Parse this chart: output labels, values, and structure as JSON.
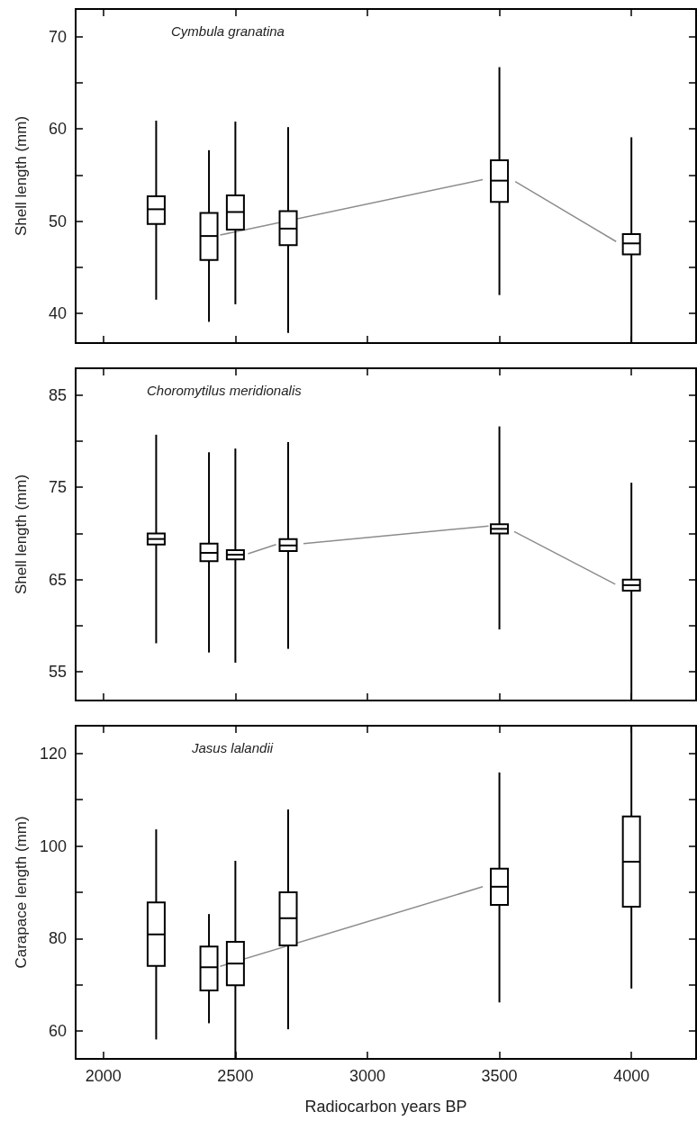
{
  "chart_data": [
    {
      "type": "box",
      "title": "Cymbula granatina",
      "ylabel": "Shell length (mm)",
      "xlim": [
        1895,
        4245
      ],
      "xticks": [
        2000,
        2500,
        3000,
        3500,
        4000
      ],
      "ylim": [
        36.8,
        73
      ],
      "yticks": [
        40,
        {
          "value": 45,
          "label": null
        },
        50,
        {
          "value": 55,
          "label": null
        },
        60,
        {
          "value": 65,
          "label": null
        },
        70
      ],
      "tick_labels": "y",
      "grid": false,
      "series": [
        {
          "color": "#000000",
          "x": [
            2200,
            2400,
            2500,
            2700,
            3500,
            4000
          ],
          "boxes": [
            {
              "low": 41.5,
              "q1": 49.7,
              "median": 51.3,
              "q3": 52.7,
              "high": 60.9
            },
            {
              "low": 39.1,
              "q1": 45.8,
              "median": 48.4,
              "q3": 50.9,
              "high": 57.7
            },
            {
              "low": 41.0,
              "q1": 49.1,
              "median": 51.0,
              "q3": 52.8,
              "high": 60.8
            },
            {
              "low": 37.9,
              "q1": 47.4,
              "median": 49.2,
              "q3": 51.1,
              "high": 60.2
            },
            {
              "low": 42.0,
              "q1": 52.1,
              "median": 54.4,
              "q3": 56.6,
              "high": 66.7
            },
            {
              "low": 36.8,
              "q1": 46.4,
              "median": 47.6,
              "q3": 48.6,
              "high": 59.1
            }
          ]
        },
        {
          "type": "line",
          "color": "#8c8c8c",
          "x": [
            2442,
            3437
          ],
          "values": [
            48.5,
            54.5
          ]
        },
        {
          "type": "line",
          "color": "#8c8c8c",
          "x": [
            3560,
            3942
          ],
          "values": [
            54.3,
            47.8
          ]
        }
      ]
    },
    {
      "type": "box",
      "title": "Choromytilus meridionalis",
      "ylabel": "Shell length (mm)",
      "xlim": [
        1895,
        4245
      ],
      "xticks": [
        2000,
        2500,
        3000,
        3500,
        4000
      ],
      "ylim": [
        51.9,
        87.9
      ],
      "yticks": [
        55,
        {
          "value": 60,
          "label": null
        },
        65,
        {
          "value": 70,
          "label": null
        },
        75,
        {
          "value": 80,
          "label": null
        },
        85
      ],
      "tick_labels": "y",
      "grid": false,
      "series": [
        {
          "color": "#000000",
          "x": [
            2200,
            2400,
            2500,
            2700,
            3500,
            4000
          ],
          "boxes": [
            {
              "low": 58.1,
              "q1": 68.8,
              "median": 69.4,
              "q3": 70.0,
              "high": 80.7
            },
            {
              "low": 57.1,
              "q1": 67.0,
              "median": 67.9,
              "q3": 68.9,
              "high": 78.8
            },
            {
              "low": 56.0,
              "q1": 67.2,
              "median": 67.7,
              "q3": 68.2,
              "high": 79.2
            },
            {
              "low": 57.5,
              "q1": 68.1,
              "median": 68.7,
              "q3": 69.4,
              "high": 79.9
            },
            {
              "low": 59.6,
              "q1": 70.0,
              "median": 70.5,
              "q3": 71.0,
              "high": 81.6
            },
            {
              "low": 51.9,
              "q1": 63.8,
              "median": 64.4,
              "q3": 65.0,
              "high": 75.5
            }
          ]
        },
        {
          "type": "line",
          "color": "#8c8c8c",
          "x": [
            2548,
            2654
          ],
          "values": [
            67.8,
            68.8
          ]
        },
        {
          "type": "line",
          "color": "#8c8c8c",
          "x": [
            2758,
            3459
          ],
          "values": [
            68.9,
            70.8
          ]
        },
        {
          "type": "line",
          "color": "#8c8c8c",
          "x": [
            3556,
            3939
          ],
          "values": [
            70.2,
            64.5
          ]
        }
      ]
    },
    {
      "type": "box",
      "title": "Jasus lalandii",
      "ylabel": "Carapace length (mm)",
      "xlabel": "Radiocarbon years BP",
      "xlim": [
        1895,
        4245
      ],
      "xticks": [
        2000,
        2500,
        3000,
        3500,
        4000
      ],
      "ylim": [
        54,
        126
      ],
      "yticks": [
        60,
        {
          "value": 70,
          "label": null
        },
        80,
        {
          "value": 90,
          "label": null
        },
        100,
        {
          "value": 110,
          "label": null
        },
        120
      ],
      "grid": false,
      "series": [
        {
          "color": "#000000",
          "x": [
            2200,
            2400,
            2500,
            2700,
            3500,
            4000
          ],
          "boxes": [
            {
              "low": 58.2,
              "q1": 74.1,
              "median": 80.9,
              "q3": 87.8,
              "high": 103.6
            },
            {
              "low": 61.7,
              "q1": 68.8,
              "median": 73.8,
              "q3": 78.3,
              "high": 85.3
            },
            {
              "low": 54.0,
              "q1": 69.9,
              "median": 74.6,
              "q3": 79.3,
              "high": 96.8
            },
            {
              "low": 60.4,
              "q1": 78.5,
              "median": 84.4,
              "q3": 90.0,
              "high": 107.9
            },
            {
              "low": 66.2,
              "q1": 87.3,
              "median": 91.2,
              "q3": 95.1,
              "high": 115.9
            },
            {
              "low": 69.2,
              "q1": 86.9,
              "median": 96.6,
              "q3": 106.4,
              "high": 126.0
            }
          ]
        },
        {
          "type": "line",
          "color": "#8c8c8c",
          "x": [
            2442,
            3437
          ],
          "values": [
            74.0,
            91.2
          ]
        }
      ]
    }
  ]
}
